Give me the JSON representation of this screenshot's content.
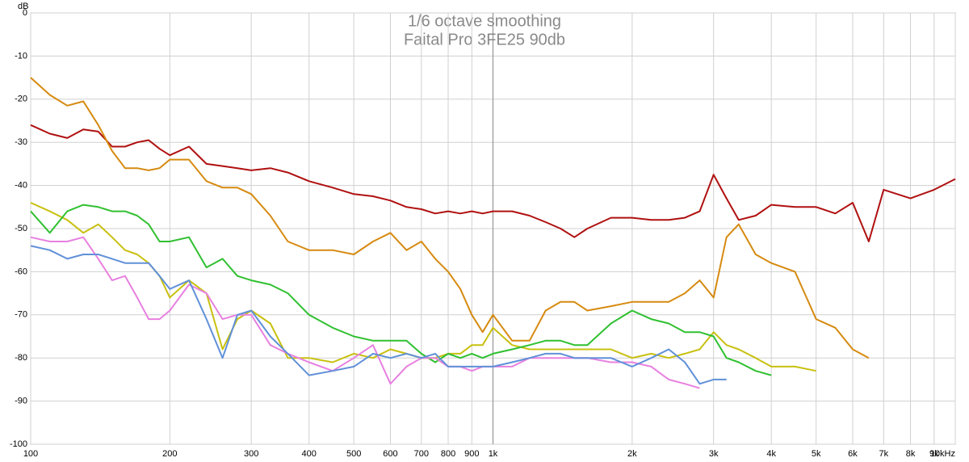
{
  "chart_data": {
    "type": "line",
    "title": "1/6 octave smoothing",
    "subtitle": "Faital Pro 3FE25 90db",
    "y_label": "dB",
    "log_x": true,
    "grid": true,
    "x": [
      100,
      110,
      120,
      130,
      140,
      150,
      160,
      170,
      180,
      190,
      200,
      220,
      240,
      260,
      280,
      300,
      330,
      360,
      400,
      450,
      500,
      550,
      600,
      650,
      700,
      750,
      800,
      850,
      900,
      950,
      1000,
      1100,
      1200,
      1300,
      1400,
      1500,
      1600,
      1800,
      2000,
      2200,
      2400,
      2600,
      2800,
      3000,
      3200,
      3400,
      3700,
      4000,
      4500,
      5000,
      5500,
      6000,
      6500,
      7000,
      8000,
      9000,
      10000
    ],
    "xlim": [
      100,
      10000
    ],
    "xticks": [
      100,
      200,
      300,
      400,
      500,
      600,
      700,
      800,
      900,
      {
        "value": 1000,
        "label": "1k"
      },
      {
        "value": 2000,
        "label": "2k"
      },
      {
        "value": 3000,
        "label": "3k"
      },
      {
        "value": 4000,
        "label": "4k"
      },
      {
        "value": 5000,
        "label": "5k"
      },
      {
        "value": 6000,
        "label": "6k"
      },
      {
        "value": 7000,
        "label": "7k"
      },
      {
        "value": 8000,
        "label": "8k"
      },
      {
        "value": 9000,
        "label": "9k"
      },
      {
        "value": 10000,
        "label": "10kHz"
      }
    ],
    "ylim": [
      -100,
      0
    ],
    "yticks": [
      0,
      -10,
      -20,
      -30,
      -40,
      -50,
      -60,
      -70,
      -80,
      -90,
      -100
    ],
    "series": [
      {
        "color": "#b01010",
        "values": [
          -26,
          -28,
          -29,
          -27,
          -27.5,
          -31,
          -31,
          -30,
          -29.5,
          -31.5,
          -33,
          -31,
          -35,
          -35.5,
          -36,
          -36.5,
          -36,
          -37,
          -39,
          -40.5,
          -42,
          -42.5,
          -43.5,
          -45,
          -45.5,
          -46.5,
          -46,
          -46.5,
          -46,
          -46.5,
          -46,
          -46,
          -47,
          -48.5,
          -50,
          -52,
          -50,
          -47.5,
          -47.5,
          -48,
          -48,
          -47.5,
          -46,
          -37.5,
          -43,
          -48,
          -47,
          -44.5,
          -45,
          -45,
          -46.5,
          -44,
          -53,
          -41,
          -43,
          -41,
          -38.5
        ]
      },
      {
        "color": "#d68a10",
        "values": [
          -15,
          -19,
          -21.5,
          -20.5,
          -26,
          -32,
          -36,
          -36,
          -36.5,
          -36,
          -34,
          -34,
          -39,
          -40.5,
          -40.5,
          -42,
          -47,
          -53,
          -55,
          -55,
          -56,
          -53,
          -51,
          -55,
          -53,
          -57,
          -60,
          -64,
          -70,
          -74,
          -70,
          -76,
          -76,
          -69,
          -67,
          -67,
          -69,
          -68,
          -67,
          -67,
          -67,
          -65,
          -62,
          -66,
          -52,
          -49,
          -56,
          -58,
          -60,
          -71,
          -73,
          -78,
          -80,
          null,
          null,
          null,
          null
        ]
      },
      {
        "color": "#c8c010",
        "values": [
          -44,
          -46,
          -48,
          -51,
          -49,
          -52,
          -55,
          -56,
          -58,
          -61,
          -66,
          -62,
          -65,
          -78,
          -71,
          -69,
          -72,
          -80,
          -80,
          -81,
          -79,
          -80,
          -78,
          -79,
          -80,
          -80,
          -79,
          -79,
          -77,
          -77,
          -73,
          -77,
          -78,
          -78,
          -78,
          -78,
          -78,
          -78,
          -80,
          -79,
          -80,
          -79,
          -78,
          -74,
          -77,
          -78,
          -80,
          -82,
          -82,
          -83,
          null,
          null,
          null,
          null,
          null,
          null,
          null
        ]
      },
      {
        "color": "#30c030",
        "values": [
          -46,
          -51,
          -46,
          -44.5,
          -45,
          -46,
          -46,
          -47,
          -49,
          -53,
          -53,
          -52,
          -59,
          -57,
          -61,
          -62,
          -63,
          -65,
          -70,
          -73,
          -75,
          -76,
          -76,
          -76,
          -79,
          -81,
          -79,
          -80,
          -79,
          -80,
          -79,
          -78,
          -77,
          -76,
          -76,
          -77,
          -77,
          -72,
          -69,
          -71,
          -72,
          -74,
          -74,
          -75,
          -80,
          -81,
          -83,
          -84,
          null,
          null,
          null,
          null,
          null,
          null,
          null,
          null,
          null
        ]
      },
      {
        "color": "#e880e0",
        "values": [
          -52,
          -53,
          -53,
          -52,
          -57,
          -62,
          -61,
          -66,
          -71,
          -71,
          -69,
          -63,
          -65,
          -71,
          -70,
          -70,
          -77,
          -79,
          -81,
          -83,
          -80,
          -77,
          -86,
          -82,
          -80,
          -80,
          -82,
          -82,
          -83,
          -82,
          -82,
          -82,
          -80,
          -80,
          -80,
          -80,
          -80,
          -81,
          -81,
          -82,
          -85,
          -86,
          -87,
          null,
          null,
          null,
          null,
          null,
          null,
          null,
          null,
          null,
          null,
          null,
          null,
          null,
          null
        ]
      },
      {
        "color": "#6090d8",
        "values": [
          -54,
          -55,
          -57,
          -56,
          -56,
          -57,
          -58,
          -58,
          -58,
          -61,
          -64,
          -62,
          -71,
          -80,
          -70,
          -69,
          -75,
          -79,
          -84,
          -83,
          -82,
          -79,
          -80,
          -79,
          -80,
          -79,
          -82,
          -82,
          -82,
          -82,
          -82,
          -81,
          -80,
          -79,
          -79,
          -80,
          -80,
          -80,
          -82,
          -80,
          -78,
          -81,
          -86,
          -85,
          -85,
          null,
          null,
          null,
          null,
          null,
          null,
          null,
          null,
          null,
          null,
          null,
          null
        ]
      }
    ]
  }
}
